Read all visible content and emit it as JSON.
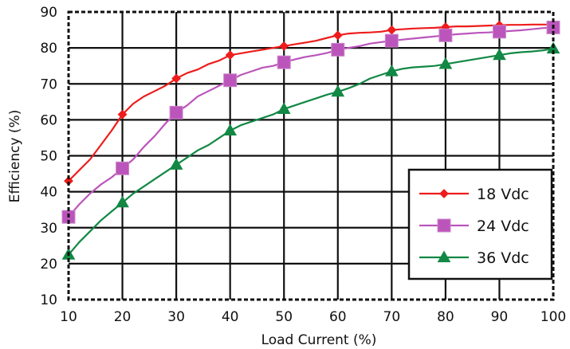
{
  "chart_data": {
    "type": "line",
    "title": "",
    "xlabel": "Load Current (%)",
    "ylabel": "Efficiency (%)",
    "xlim": [
      10,
      100
    ],
    "ylim": [
      10,
      90
    ],
    "xticks": [
      10,
      20,
      30,
      40,
      50,
      60,
      70,
      80,
      90,
      100
    ],
    "yticks": [
      10,
      20,
      30,
      40,
      50,
      60,
      70,
      80,
      90
    ],
    "grid": true,
    "legend_position": "bottom-right",
    "series": [
      {
        "name": "18  Vdc",
        "color": "#ee1c1c",
        "marker": "diamond",
        "x": [
          10,
          12,
          14,
          16,
          18,
          20,
          22,
          24,
          26,
          28,
          30,
          32,
          34,
          36,
          38,
          40,
          42,
          44,
          46,
          48,
          50,
          52,
          54,
          56,
          58,
          60,
          62,
          64,
          66,
          68,
          70,
          72,
          74,
          76,
          78,
          80,
          82,
          84,
          86,
          88,
          90,
          92,
          94,
          96,
          98,
          100
        ],
        "values": [
          43,
          46,
          49,
          53,
          57,
          61.5,
          64.5,
          66.5,
          68,
          69.5,
          71.5,
          73,
          74,
          75.5,
          76.5,
          78,
          78.5,
          79,
          79.5,
          80,
          80.5,
          81,
          81.5,
          82,
          82.8,
          83.5,
          84,
          84.2,
          84.3,
          84.5,
          85,
          85.2,
          85.4,
          85.5,
          85.6,
          85.8,
          86,
          86,
          86.1,
          86.2,
          86.3,
          86.4,
          86.4,
          86.5,
          86.5,
          86.5
        ],
        "marker_x": [
          10,
          20,
          30,
          40,
          50,
          60,
          70,
          80,
          90,
          100
        ],
        "marker_values": [
          43,
          61.5,
          71.5,
          78,
          80.5,
          83.5,
          85,
          85.8,
          86.3,
          86.5
        ]
      },
      {
        "name": "24  Vdc",
        "color": "#bb55bb",
        "marker": "square",
        "x": [
          10,
          12,
          14,
          16,
          18,
          20,
          22,
          24,
          26,
          28,
          30,
          32,
          34,
          36,
          38,
          40,
          42,
          44,
          46,
          48,
          50,
          52,
          54,
          56,
          58,
          60,
          62,
          64,
          66,
          68,
          70,
          72,
          74,
          76,
          78,
          80,
          82,
          84,
          86,
          88,
          90,
          92,
          94,
          96,
          98,
          100
        ],
        "values": [
          33,
          36.5,
          39.5,
          42,
          44,
          46.5,
          49,
          52.5,
          55.5,
          59,
          62,
          64,
          66.5,
          68,
          69.5,
          71,
          72.5,
          73.5,
          74.5,
          75,
          76,
          76.8,
          77.5,
          78,
          78.6,
          79.5,
          80,
          80.5,
          81.2,
          81.6,
          82,
          82.3,
          82.6,
          82.9,
          83.2,
          83.5,
          83.8,
          84,
          84.2,
          84.3,
          84.5,
          84.7,
          84.9,
          85.2,
          85.5,
          85.7
        ],
        "marker_x": [
          10,
          20,
          30,
          40,
          50,
          60,
          70,
          80,
          90,
          100
        ],
        "marker_values": [
          33,
          46.5,
          62,
          71,
          76,
          79.5,
          82,
          83.5,
          84.5,
          85.7
        ]
      },
      {
        "name": "36  Vdc",
        "color": "#118844",
        "marker": "triangle",
        "x": [
          10,
          12,
          14,
          16,
          18,
          20,
          22,
          24,
          26,
          28,
          30,
          32,
          34,
          36,
          38,
          40,
          42,
          44,
          46,
          48,
          50,
          52,
          54,
          56,
          58,
          60,
          62,
          64,
          66,
          68,
          70,
          72,
          74,
          76,
          78,
          80,
          82,
          84,
          86,
          88,
          90,
          92,
          94,
          96,
          98,
          100
        ],
        "values": [
          22.5,
          26,
          29,
          32,
          34.5,
          37,
          39.5,
          41.5,
          43.5,
          45.5,
          47.5,
          49.5,
          51.5,
          53,
          55,
          57,
          58.5,
          59.5,
          60.5,
          61.5,
          63,
          64,
          65,
          66,
          67,
          67.8,
          68.8,
          70,
          71.5,
          72.5,
          73.5,
          74.2,
          74.6,
          74.8,
          75,
          75.5,
          76,
          76.5,
          77,
          77.5,
          78,
          78.5,
          78.8,
          79,
          79.3,
          79.8
        ],
        "marker_x": [
          10,
          20,
          30,
          40,
          50,
          60,
          70,
          80,
          90,
          100
        ],
        "marker_values": [
          22.5,
          37,
          47.5,
          57,
          63,
          67.8,
          73.5,
          75.5,
          78,
          79.8
        ]
      }
    ]
  }
}
